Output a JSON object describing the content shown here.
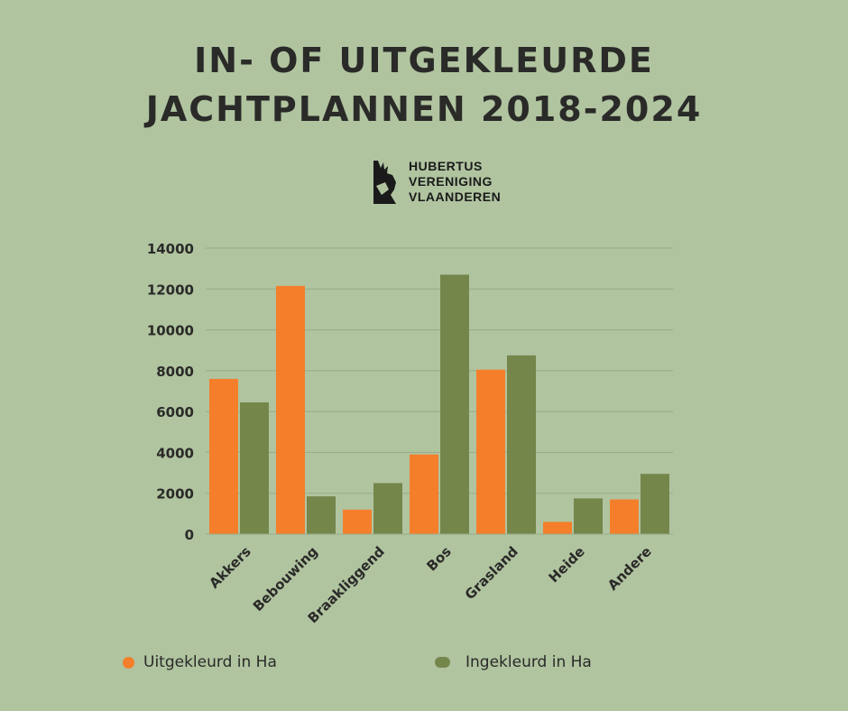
{
  "title_line1": "IN- OF UITGEKLEURDE",
  "title_line2": "JACHTPLANNEN 2018-2024",
  "logo": {
    "line1": "HUBERTUS",
    "line2": "VERENIGING",
    "line3": "VLAANDEREN",
    "icon": "deer-silhouette-icon"
  },
  "colors": {
    "background": "#b0c4a0",
    "uitgekleurd": "#f57e2b",
    "ingekleurd": "#75864b",
    "grid": "#97ab89",
    "text": "#2a2a28"
  },
  "chart_data": {
    "type": "bar",
    "title": "IN- OF UITGEKLEURDE JACHTPLANNEN 2018-2024",
    "categories": [
      "Akkers",
      "Bebouwing",
      "Braakliggend",
      "Bos",
      "Grasland",
      "Heide",
      "Andere"
    ],
    "series": [
      {
        "name": "Uitgekleurd in Ha",
        "color": "#f57e2b",
        "values": [
          7600,
          12150,
          1200,
          3900,
          8050,
          600,
          1700
        ]
      },
      {
        "name": "Ingekleurd in Ha",
        "color": "#75864b",
        "values": [
          6450,
          1850,
          2500,
          12700,
          8750,
          1750,
          2950
        ]
      }
    ],
    "yticks": [
      0,
      2000,
      4000,
      6000,
      8000,
      10000,
      12000,
      14000
    ],
    "ylim": [
      0,
      14000
    ],
    "xlabel": "",
    "ylabel": "",
    "grid": true,
    "legend_position": "bottom"
  }
}
